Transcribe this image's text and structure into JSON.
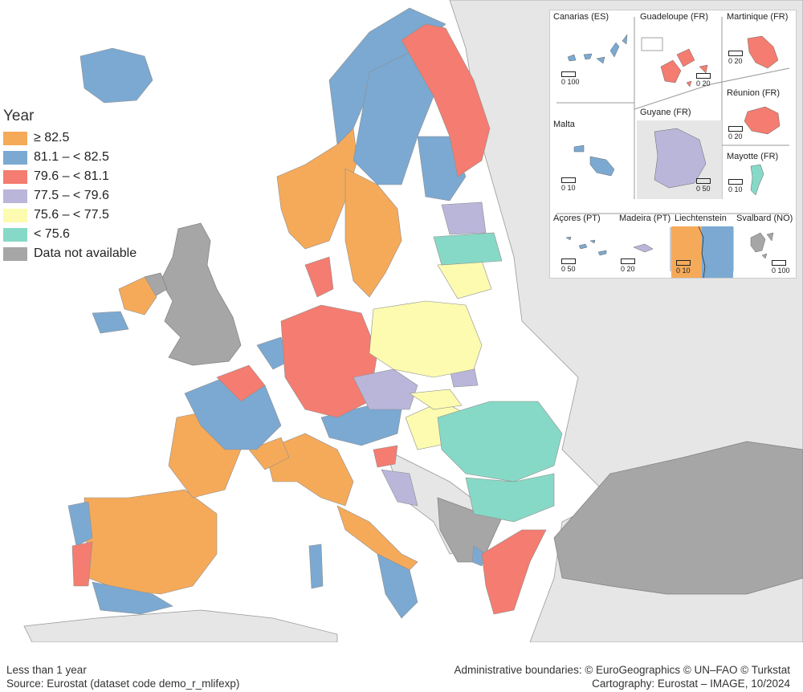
{
  "legend": {
    "title": "Year",
    "items": [
      {
        "label": "≥ 82.5",
        "color": "#f5aa5a"
      },
      {
        "label": "81.1 – < 82.5",
        "color": "#7ba9d2"
      },
      {
        "label": "79.6 – < 81.1",
        "color": "#f47c70"
      },
      {
        "label": "77.5 – < 79.6",
        "color": "#b9b6da"
      },
      {
        "label": "75.6 – < 77.5",
        "color": "#fcfbb0"
      },
      {
        "label": "< 75.6",
        "color": "#86d9c6"
      },
      {
        "label": "Data not available",
        "color": "#a6a6a6"
      }
    ]
  },
  "footer": {
    "left_line1": "Less than 1 year",
    "left_line2": "Source: Eurostat (dataset code demo_r_mlifexp)",
    "right_line1": "Administrative boundaries: © EuroGeographics © UN–FAO © Turkstat",
    "right_line2": "Cartography: Eurostat – IMAGE, 10/2024"
  },
  "insets": [
    {
      "name": "Canarias (ES)",
      "scale": "0 100",
      "color": "#7ba9d2"
    },
    {
      "name": "Guadeloupe (FR)",
      "scale": "0 20",
      "color": "#f47c70"
    },
    {
      "name": "Martinique (FR)",
      "scale": "0 20",
      "color": "#f47c70"
    },
    {
      "name": "Réunion (FR)",
      "scale": "0 20",
      "color": "#f47c70"
    },
    {
      "name": "Malta",
      "scale": "0 10",
      "color": "#7ba9d2"
    },
    {
      "name": "Guyane (FR)",
      "scale": "0 50",
      "color": "#b9b6da"
    },
    {
      "name": "Mayotte (FR)",
      "scale": "0 10",
      "color": "#86d9c6"
    },
    {
      "name": "Açores (PT)",
      "scale": "0 50",
      "color": "#7ba9d2"
    },
    {
      "name": "Madeira (PT)",
      "scale": "0 20",
      "color": "#b9b6da"
    },
    {
      "name": "Liechtenstein",
      "scale": "0 10",
      "color": "#f5aa5a"
    },
    {
      "name": "Svalbard (NO)",
      "scale": "0 100",
      "color": "#a6a6a6"
    }
  ],
  "colors": {
    "sea": "#ffffff",
    "non_eu_land": "#e6e6e6",
    "no_data": "#a6a6a6"
  }
}
